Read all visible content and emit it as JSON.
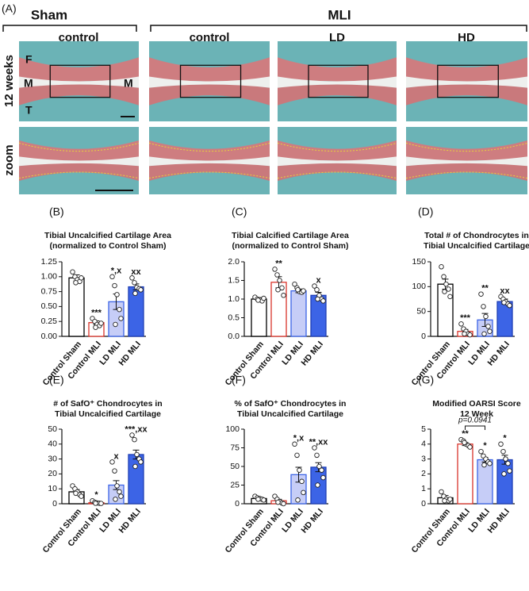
{
  "panel_a": {
    "label": "(A)",
    "groups": [
      "Sham",
      "MLI"
    ],
    "columns": [
      "control",
      "control",
      "LD",
      "HD"
    ],
    "rows": [
      "12 weeks",
      "zoom"
    ],
    "image_labels": [
      "F",
      "M",
      "M",
      "T"
    ]
  },
  "chart_data": [
    {
      "type": "bar",
      "panel": "(B)",
      "title": [
        "Tibial Uncalcified Cartilage Area",
        "(normalized to Control Sham)"
      ],
      "categories": [
        "Control Sham",
        "Control MLI",
        "LD MLI",
        "HD MLI"
      ],
      "values": [
        0.98,
        0.23,
        0.58,
        0.83
      ],
      "errors": [
        0.05,
        0.03,
        0.13,
        0.05
      ],
      "points": [
        [
          1.08,
          1.0,
          0.95,
          0.92,
          0.98,
          0.9
        ],
        [
          0.3,
          0.25,
          0.2,
          0.18,
          0.22,
          0.15
        ],
        [
          1.0,
          0.85,
          0.7,
          0.45,
          0.3,
          0.2
        ],
        [
          0.98,
          0.9,
          0.82,
          0.8,
          0.78,
          0.72
        ]
      ],
      "annotations": [
        null,
        "***",
        "*,x",
        "xx"
      ],
      "colors": [
        "#ffffff",
        "#ffffff",
        "#c6cdf7",
        "#3c64e6"
      ],
      "edge_colors": [
        "#000000",
        "#d9342b",
        "#3c64e6",
        "#1f3fb5"
      ],
      "ylim": [
        0,
        1.25
      ],
      "yticks": [
        {
          "value": 0,
          "label": "0.00"
        },
        0.25,
        {
          "value": 0.5,
          "label": "0.50"
        },
        0.75,
        {
          "value": 1,
          "label": "1.00"
        },
        1.25
      ]
    },
    {
      "type": "bar",
      "panel": "(C)",
      "title": [
        "Tibial Calcified Cartilage Area",
        "(normalized to Control Sham)"
      ],
      "categories": [
        "Control Sham",
        "Control MLI",
        "LD MLI",
        "HD MLI"
      ],
      "values": [
        1.0,
        1.45,
        1.22,
        1.1
      ],
      "errors": [
        0.04,
        0.15,
        0.05,
        0.08
      ],
      "points": [
        [
          1.05,
          1.0,
          0.98,
          0.95,
          1.02,
          0.97
        ],
        [
          1.8,
          1.65,
          1.5,
          1.3,
          1.1,
          1.25
        ],
        [
          1.4,
          1.3,
          1.2,
          1.18,
          1.22,
          1.25
        ],
        [
          1.35,
          1.25,
          1.1,
          1.0,
          0.95,
          1.0
        ]
      ],
      "annotations": [
        null,
        "**",
        null,
        "x"
      ],
      "colors": [
        "#ffffff",
        "#ffffff",
        "#c6cdf7",
        "#3c64e6"
      ],
      "edge_colors": [
        "#000000",
        "#d9342b",
        "#3c64e6",
        "#1f3fb5"
      ],
      "ylim": [
        0,
        2
      ],
      "yticks": [
        {
          "value": 0,
          "label": "0.0"
        },
        0.5,
        {
          "value": 1,
          "label": "1.0"
        },
        1.5,
        {
          "value": 2,
          "label": "2.0"
        }
      ]
    },
    {
      "type": "bar",
      "panel": "(D)",
      "title": [
        "Total # of Chondrocytes in",
        "Tibial Uncalcified Cartilage"
      ],
      "categories": [
        "Control Sham",
        "Control MLI",
        "LD MLI",
        "HD MLI"
      ],
      "values": [
        105,
        10,
        33,
        70
      ],
      "errors": [
        10,
        4,
        13,
        5
      ],
      "points": [
        [
          140,
          120,
          105,
          95,
          80,
          90
        ],
        [
          25,
          15,
          10,
          5,
          3,
          5
        ],
        [
          85,
          60,
          40,
          20,
          10,
          5
        ],
        [
          80,
          75,
          70,
          65,
          62,
          68
        ]
      ],
      "annotations": [
        null,
        "***",
        "**",
        "xx"
      ],
      "colors": [
        "#ffffff",
        "#ffffff",
        "#c6cdf7",
        "#3c64e6"
      ],
      "edge_colors": [
        "#000000",
        "#d9342b",
        "#3c64e6",
        "#1f3fb5"
      ],
      "ylim": [
        0,
        150
      ],
      "yticks": [
        0,
        50,
        100,
        150
      ]
    },
    {
      "type": "bar",
      "panel": "(E)",
      "title": [
        "# of SafO⁺ Chondrocytes in",
        "Tibial Uncalcified Cartilage"
      ],
      "categories": [
        "Control Sham",
        "Control MLI",
        "LD MLI",
        "HD MLI"
      ],
      "values": [
        8,
        0.7,
        12.5,
        33
      ],
      "errors": [
        1.5,
        0.5,
        3,
        3
      ],
      "points": [
        [
          12,
          10,
          8,
          6,
          5,
          7
        ],
        [
          2,
          1,
          0.5,
          0.3,
          0.2,
          0.3
        ],
        [
          28,
          22,
          12,
          8,
          5,
          3
        ],
        [
          46,
          43,
          33,
          30,
          28,
          25
        ]
      ],
      "annotations": [
        null,
        "*",
        "x",
        "***,xx"
      ],
      "colors": [
        "#ffffff",
        "#ffffff",
        "#c6cdf7",
        "#3c64e6"
      ],
      "edge_colors": [
        "#000000",
        "#d9342b",
        "#3c64e6",
        "#1f3fb5"
      ],
      "ylim": [
        0,
        50
      ],
      "yticks": [
        0,
        10,
        20,
        30,
        40,
        50
      ]
    },
    {
      "type": "bar",
      "panel": "(F)",
      "title": [
        "% of SafO⁺ Chondrocytes in",
        "Tibial Uncalcified Cartilage"
      ],
      "categories": [
        "Control Sham",
        "Control MLI",
        "LD MLI",
        "HD MLI"
      ],
      "values": [
        7,
        4,
        39,
        49
      ],
      "errors": [
        1.5,
        2,
        10,
        6
      ],
      "points": [
        [
          10,
          8,
          7,
          6,
          5,
          6
        ],
        [
          10,
          6,
          3,
          1,
          0,
          2
        ],
        [
          80,
          65,
          45,
          30,
          15,
          5
        ],
        [
          75,
          65,
          50,
          45,
          35,
          25
        ]
      ],
      "annotations": [
        null,
        null,
        "*,x",
        "**,xx"
      ],
      "colors": [
        "#ffffff",
        "#ffffff",
        "#c6cdf7",
        "#3c64e6"
      ],
      "edge_colors": [
        "#000000",
        "#d9342b",
        "#3c64e6",
        "#1f3fb5"
      ],
      "ylim": [
        0,
        100
      ],
      "yticks": [
        0,
        25,
        50,
        75,
        100
      ]
    },
    {
      "type": "bar",
      "panel": "(G)",
      "title": [
        "Modified OARSI Score",
        "12 Week"
      ],
      "categories": [
        "Control Sham",
        "Control MLI",
        "LD MLI",
        "HD MLI"
      ],
      "values": [
        0.4,
        4.0,
        2.95,
        2.95
      ],
      "errors": [
        0.15,
        0.1,
        0.15,
        0.3
      ],
      "points": [
        [
          0.8,
          0.5,
          0.3,
          0.2,
          0.3,
          0.2
        ],
        [
          4.3,
          4.2,
          4.0,
          3.9,
          3.8,
          4.1
        ],
        [
          3.5,
          3.2,
          3.0,
          2.8,
          2.7,
          2.6
        ],
        [
          4.0,
          3.5,
          3.0,
          2.7,
          2.2,
          2.0
        ]
      ],
      "annotations": [
        null,
        "**",
        "*",
        "*"
      ],
      "comparison_label": "p=0.0941",
      "colors": [
        "#ffffff",
        "#ffffff",
        "#c6cdf7",
        "#3c64e6"
      ],
      "edge_colors": [
        "#000000",
        "#d9342b",
        "#3c64e6",
        "#1f3fb5"
      ],
      "ylim": [
        0,
        5
      ],
      "yticks": [
        0,
        1,
        2,
        3,
        4,
        5
      ]
    }
  ]
}
